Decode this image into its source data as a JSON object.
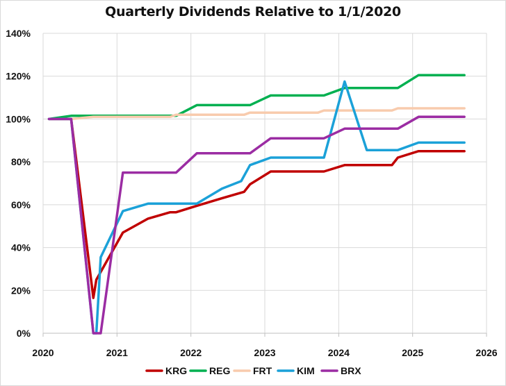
{
  "chart_data": {
    "type": "line",
    "title": "Quarterly Dividends Relative to 1/1/2020",
    "xlabel": "",
    "ylabel": "",
    "xlim": [
      2020,
      2026
    ],
    "ylim": [
      0,
      140
    ],
    "x_ticks": [
      2020,
      2021,
      2022,
      2023,
      2024,
      2025,
      2026
    ],
    "y_ticks": [
      0,
      20,
      40,
      60,
      80,
      100,
      120,
      140
    ],
    "y_tick_labels": [
      "0%",
      "20%",
      "40%",
      "60%",
      "80%",
      "100%",
      "120%",
      "140%"
    ],
    "grid": "horizontal",
    "legend": "bottom",
    "series": [
      {
        "name": "KRG",
        "color": "#c00000",
        "x": [
          2020.08,
          2020.38,
          2020.68,
          2020.72,
          2021.08,
          2021.42,
          2021.72,
          2021.8,
          2022.08,
          2022.42,
          2022.72,
          2022.8,
          2023.08,
          2023.42,
          2023.72,
          2023.8,
          2024.08,
          2024.42,
          2024.72,
          2024.8,
          2025.08,
          2025.42,
          2025.7
        ],
        "y": [
          100,
          100,
          16.5,
          25,
          47,
          53.5,
          56.5,
          56.5,
          59.5,
          63,
          66,
          69.5,
          75.5,
          75.5,
          75.5,
          75.5,
          78.5,
          78.5,
          78.5,
          82,
          85,
          85,
          85
        ]
      },
      {
        "name": "REG",
        "color": "#00b050",
        "x": [
          2020.08,
          2020.38,
          2020.68,
          2021.08,
          2021.42,
          2021.72,
          2021.8,
          2022.08,
          2022.42,
          2022.72,
          2022.8,
          2023.08,
          2023.42,
          2023.72,
          2023.8,
          2024.08,
          2024.42,
          2024.72,
          2024.8,
          2025.08,
          2025.42,
          2025.7
        ],
        "y": [
          100,
          101.5,
          101.5,
          101.5,
          101.5,
          101.5,
          101.5,
          106.5,
          106.5,
          106.5,
          106.5,
          111,
          111,
          111,
          111,
          114.5,
          114.5,
          114.5,
          114.5,
          120.5,
          120.5,
          120.5
        ]
      },
      {
        "name": "FRT",
        "color": "#f8cbad",
        "x": [
          2020.08,
          2020.38,
          2020.68,
          2021.08,
          2021.42,
          2021.72,
          2021.8,
          2022.08,
          2022.42,
          2022.72,
          2022.8,
          2023.08,
          2023.42,
          2023.72,
          2023.8,
          2024.08,
          2024.42,
          2024.72,
          2024.8,
          2025.08,
          2025.42,
          2025.7
        ],
        "y": [
          100,
          100,
          101,
          101,
          101,
          101,
          102,
          102,
          102,
          102,
          103,
          103,
          103,
          103,
          104,
          104,
          104,
          104,
          105,
          105,
          105,
          105
        ]
      },
      {
        "name": "KIM",
        "color": "#1ba1d8",
        "x": [
          2020.08,
          2020.38,
          2020.68,
          2020.72,
          2020.78,
          2021.08,
          2021.42,
          2021.72,
          2021.8,
          2022.08,
          2022.42,
          2022.68,
          2022.8,
          2023.08,
          2023.42,
          2023.72,
          2023.8,
          2024.08,
          2024.38,
          2024.72,
          2024.8,
          2025.08,
          2025.42,
          2025.7
        ],
        "y": [
          100,
          100,
          0,
          0,
          35.5,
          57,
          60.5,
          60.5,
          60.5,
          60.5,
          67.5,
          71,
          78.5,
          82,
          82,
          82,
          82,
          117.5,
          85.5,
          85.5,
          85.5,
          89,
          89,
          89
        ]
      },
      {
        "name": "BRX",
        "color": "#9b2ca3",
        "x": [
          2020.08,
          2020.38,
          2020.68,
          2020.78,
          2021.08,
          2021.42,
          2021.72,
          2021.8,
          2022.08,
          2022.42,
          2022.72,
          2022.8,
          2023.08,
          2023.42,
          2023.72,
          2023.8,
          2024.08,
          2024.42,
          2024.72,
          2024.8,
          2025.08,
          2025.42,
          2025.7
        ],
        "y": [
          100,
          100,
          0,
          0,
          75,
          75,
          75,
          75,
          84,
          84,
          84,
          84,
          91,
          91,
          91,
          91,
          95.5,
          95.5,
          95.5,
          95.5,
          101,
          101,
          101
        ]
      }
    ]
  }
}
